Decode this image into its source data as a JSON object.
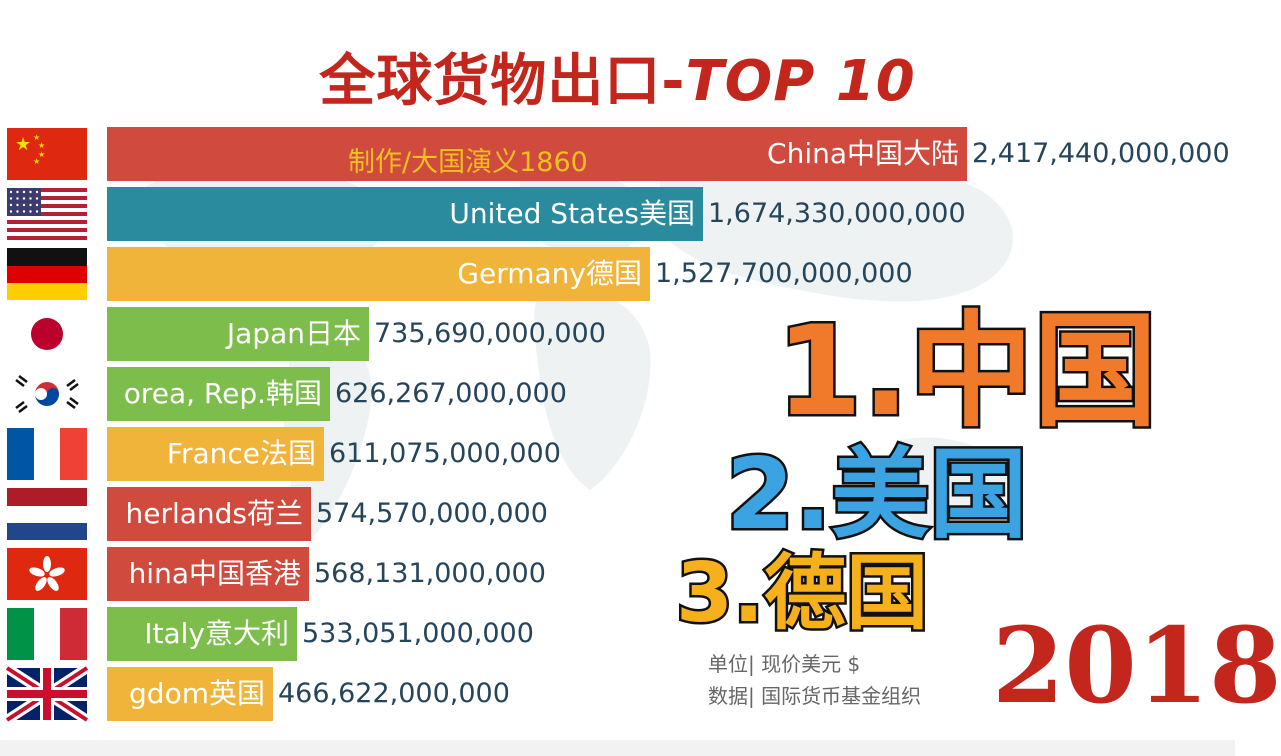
{
  "title": {
    "cn": "全球货物出口-",
    "en": "TOP 10"
  },
  "credit": "制作/大国演义1860",
  "chart_data": {
    "type": "bar",
    "orientation": "horizontal",
    "title": "全球货物出口-TOP 10",
    "year": "2018",
    "categories": [
      "China中国大陆",
      "United States美国",
      "Germany德国",
      "Japan日本",
      "orea, Rep.韩国",
      "France法国",
      "herlands荷兰",
      "hina中国香港",
      "Italy意大利",
      "gdom英国"
    ],
    "values": [
      2417440000000,
      1674330000000,
      1527700000000,
      735690000000,
      626267000000,
      611075000000,
      574570000000,
      568131000000,
      533051000000,
      466622000000
    ],
    "value_labels": [
      "2,417,440,000,000",
      "1,674,330,000,000",
      "1,527,700,000,000",
      "735,690,000,000",
      "626,267,000,000",
      "611,075,000,000",
      "574,570,000,000",
      "568,131,000,000",
      "533,051,000,000",
      "466,622,000,000"
    ],
    "colors": [
      "#d14a3e",
      "#2a8a9e",
      "#f1b43a",
      "#7cbd4b",
      "#7cbd4b",
      "#f1b43a",
      "#d14a3e",
      "#d14a3e",
      "#7cbd4b",
      "#f1b43a"
    ],
    "flags": [
      "flag-china-icon",
      "flag-usa-icon",
      "flag-germany-icon",
      "flag-japan-icon",
      "flag-korea-icon",
      "flag-france-icon",
      "flag-netherlands-icon",
      "flag-hongkong-icon",
      "flag-italy-icon",
      "flag-uk-icon"
    ],
    "xlim": [
      0,
      2417440000000
    ]
  },
  "ranking": [
    {
      "rank": "1.",
      "name": "中国"
    },
    {
      "rank": "2.",
      "name": "美国"
    },
    {
      "rank": "3.",
      "name": "德国"
    }
  ],
  "unit_note": "单位| 现价美元 $",
  "source_note": "数据| 国际货币基金组织"
}
